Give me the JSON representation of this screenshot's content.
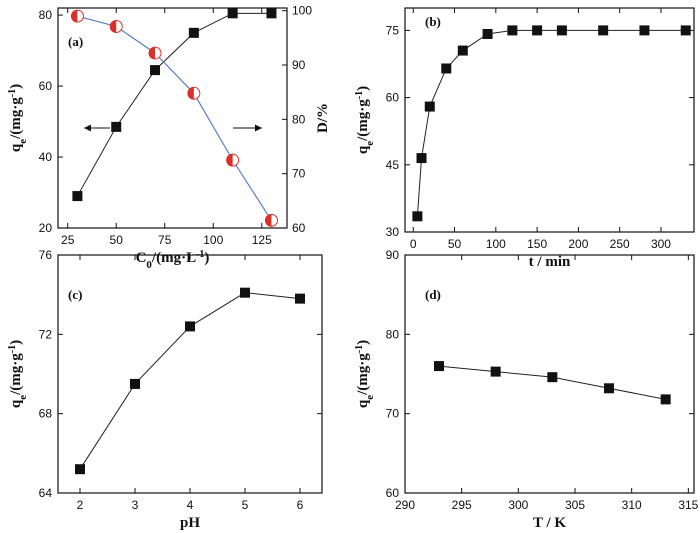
{
  "chart_data": [
    {
      "panel": "(a)",
      "type": "line",
      "xlabel": "C",
      "xlabel_sub": "0",
      "xlabel_unit": "/(mg·L",
      "xlabel_sup": "-1",
      "xlabel_close": ")",
      "ylabel": "q",
      "ylabel_sub": "e",
      "ylabel_unit": "/(mg·g",
      "ylabel_sup": "-1",
      "ylabel_close": ")",
      "y2label": "D/%",
      "xlim": [
        20,
        138
      ],
      "ylim": [
        20,
        82
      ],
      "y2lim": [
        60,
        100.5
      ],
      "xticks": [
        25,
        50,
        75,
        100,
        125
      ],
      "yticks": [
        20,
        40,
        60,
        80
      ],
      "y2ticks": [
        60,
        70,
        80,
        90,
        100
      ],
      "series": [
        {
          "axis": "left",
          "marker": "square",
          "color": "#111111",
          "x": [
            30,
            50,
            70,
            90,
            110,
            130
          ],
          "y": [
            29,
            48.5,
            64.5,
            75,
            80.5,
            80.5
          ]
        },
        {
          "axis": "right",
          "marker": "half-circle",
          "color": "#d9302a",
          "x": [
            30,
            50,
            70,
            90,
            110,
            130
          ],
          "y": [
            99,
            97.1,
            92.2,
            84.8,
            72.5,
            61.4
          ]
        }
      ]
    },
    {
      "panel": "(b)",
      "type": "line",
      "xlabel": "t / min",
      "ylabel": "q",
      "ylabel_sub": "e",
      "ylabel_unit": "/(mg·g",
      "ylabel_sup": "-1",
      "ylabel_close": ")",
      "xlim": [
        -10,
        340
      ],
      "ylim": [
        30,
        80
      ],
      "xticks": [
        0,
        50,
        100,
        150,
        200,
        250,
        300
      ],
      "yticks": [
        30,
        45,
        60,
        75
      ],
      "series": [
        {
          "marker": "square",
          "color": "#111111",
          "x": [
            5,
            10,
            20,
            40,
            60,
            90,
            120,
            150,
            180,
            230,
            280,
            330
          ],
          "y": [
            33.5,
            46.5,
            58,
            66.5,
            70.5,
            74.2,
            75,
            75,
            75,
            75,
            75,
            75
          ]
        }
      ]
    },
    {
      "panel": "(c)",
      "type": "line",
      "xlabel": "pH",
      "ylabel": "q",
      "ylabel_sub": "e",
      "ylabel_unit": "/(mg·g",
      "ylabel_sup": "-1",
      "ylabel_close": ")",
      "xlim": [
        1.6,
        6.4
      ],
      "ylim": [
        64,
        76
      ],
      "xticks": [
        2,
        3,
        4,
        5,
        6
      ],
      "yticks": [
        64,
        68,
        72,
        76
      ],
      "series": [
        {
          "marker": "square",
          "color": "#111111",
          "x": [
            2,
            3,
            4,
            5,
            6
          ],
          "y": [
            65.2,
            69.5,
            72.4,
            74.1,
            73.8
          ]
        }
      ]
    },
    {
      "panel": "(d)",
      "type": "line",
      "xlabel": "T / K",
      "ylabel": "q",
      "ylabel_sub": "e",
      "ylabel_unit": "/(mg·g",
      "ylabel_sup": "-1",
      "ylabel_close": ")",
      "xlim": [
        290,
        315.5
      ],
      "ylim": [
        60,
        90
      ],
      "xticks": [
        290,
        295,
        300,
        305,
        310,
        315
      ],
      "yticks": [
        60,
        70,
        80,
        90
      ],
      "series": [
        {
          "marker": "square",
          "color": "#111111",
          "x": [
            293,
            298,
            303,
            308,
            313
          ],
          "y": [
            76,
            75.3,
            74.6,
            73.2,
            71.8
          ]
        }
      ]
    }
  ]
}
